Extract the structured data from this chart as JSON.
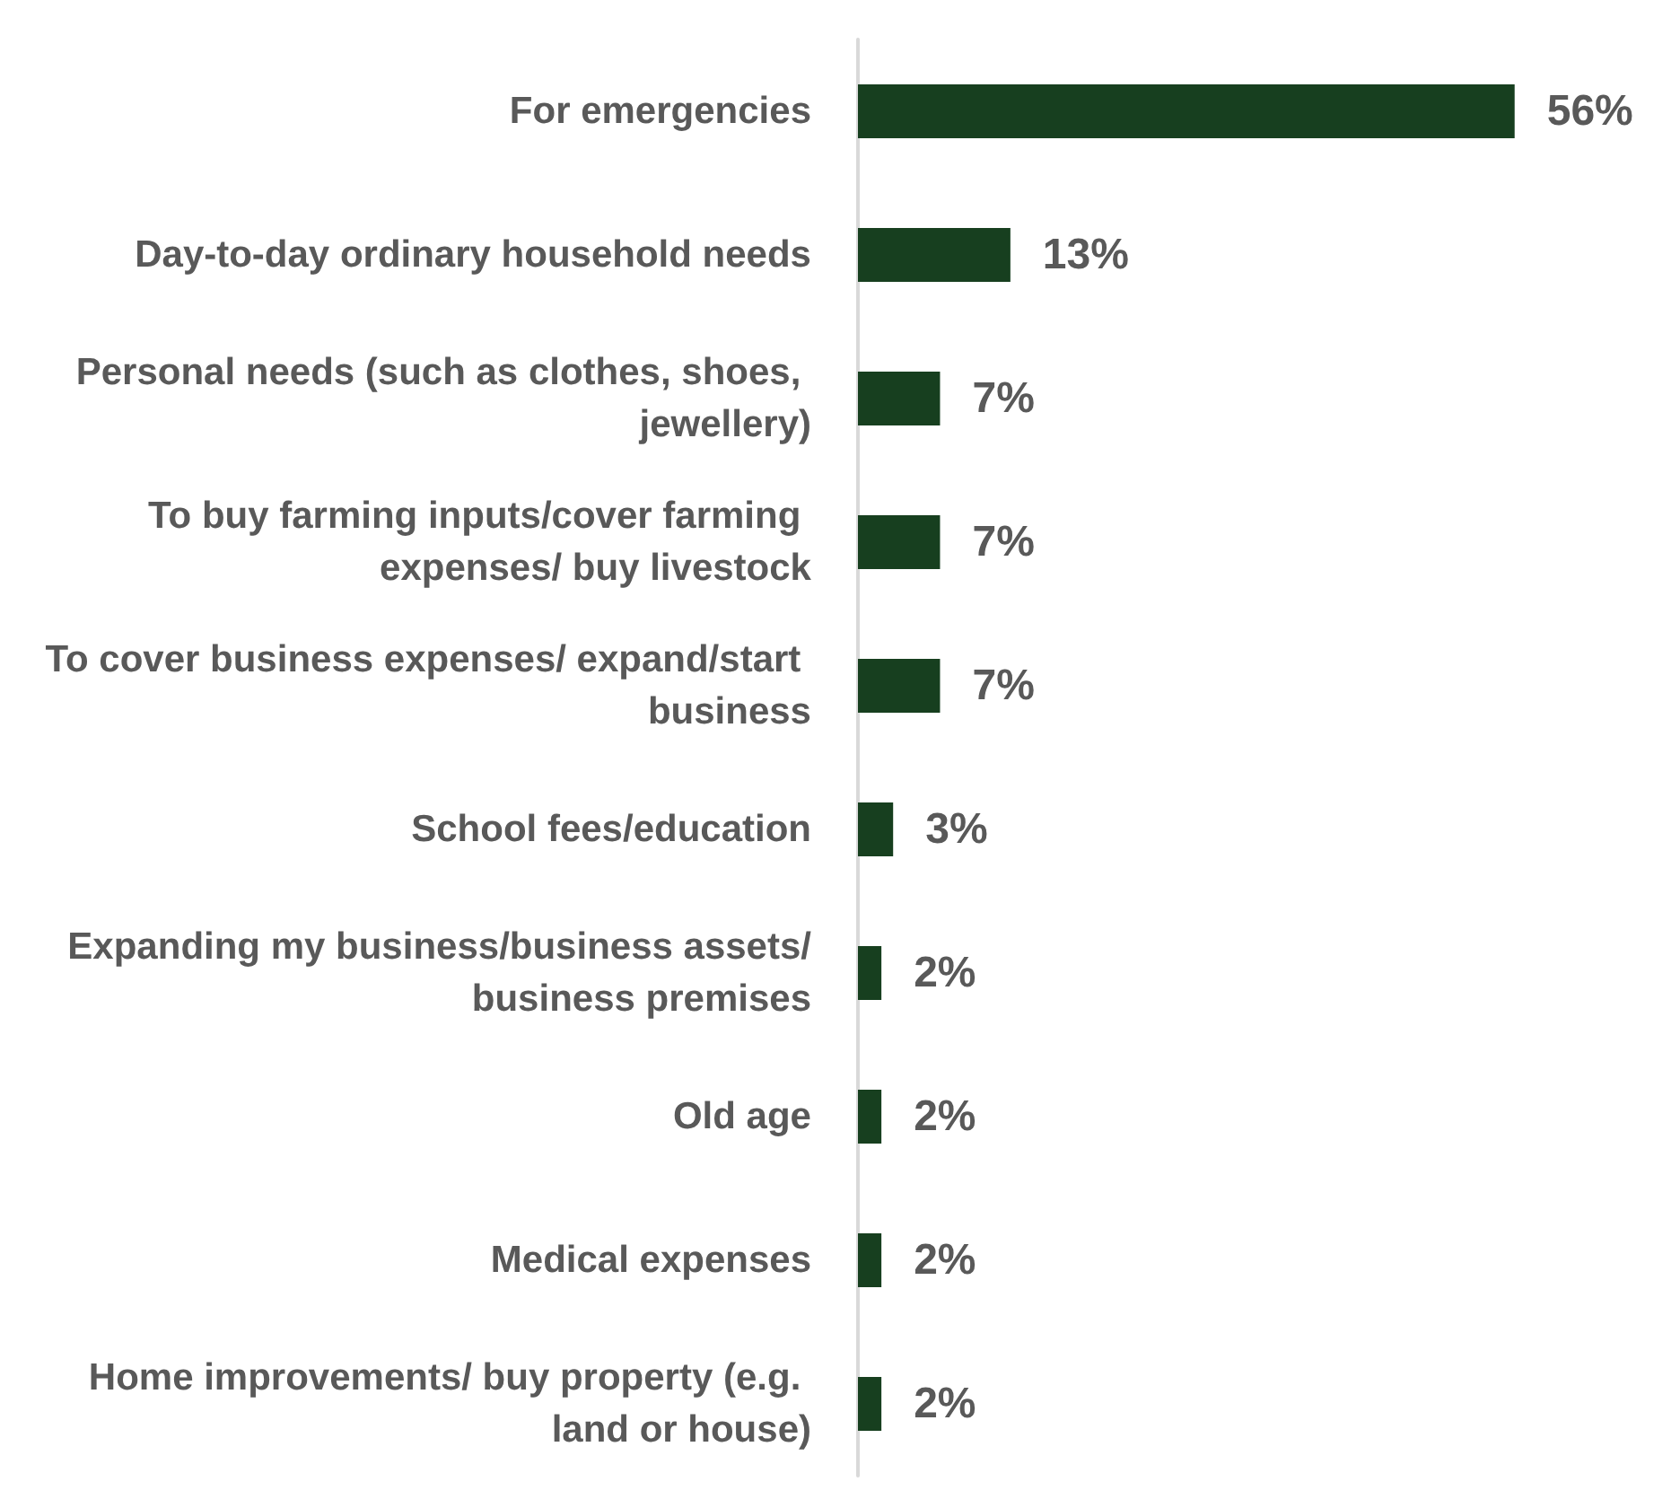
{
  "chart_data": {
    "type": "bar",
    "orientation": "horizontal",
    "categories": [
      "For emergencies",
      "Day-to-day ordinary household needs",
      "Personal needs (such as clothes, shoes, jewellery)",
      "To buy farming inputs/cover farming expenses/ buy livestock",
      "To cover business expenses/ expand/start business",
      "School fees/education",
      "Expanding my business/business assets/business premises",
      "Old age",
      "Medical expenses",
      "Home improvements/ buy property (e.g. land or house)"
    ],
    "values": [
      56,
      13,
      7,
      7,
      7,
      3,
      2,
      2,
      2,
      2
    ],
    "value_labels": [
      "56%",
      "13%",
      "7%",
      "7%",
      "7%",
      "3%",
      "2%",
      "2%",
      "2%",
      "2%"
    ],
    "color": "#173f1f"
  }
}
